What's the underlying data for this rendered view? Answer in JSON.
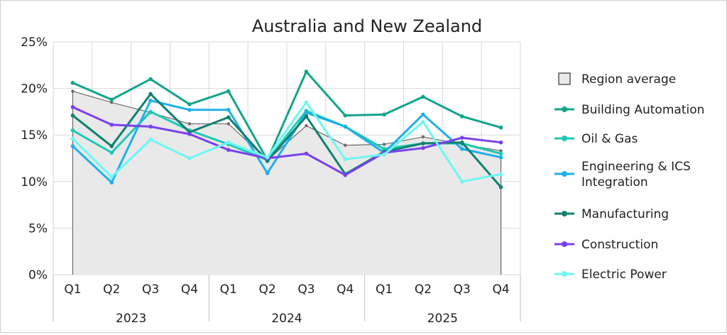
{
  "chart_data": {
    "type": "line",
    "title": "Australia and New Zealand",
    "xlabel": "",
    "ylabel": "",
    "ylim": [
      0,
      25
    ],
    "y_ticks": [
      "0%",
      "5%",
      "10%",
      "15%",
      "20%",
      "25%"
    ],
    "y_tick_values": [
      0,
      5,
      10,
      15,
      20,
      25
    ],
    "categories": [
      "Q1",
      "Q2",
      "Q3",
      "Q4",
      "Q1",
      "Q2",
      "Q3",
      "Q4",
      "Q1",
      "Q2",
      "Q3",
      "Q4"
    ],
    "groups": [
      {
        "label": "2023",
        "span": 4
      },
      {
        "label": "2024",
        "span": 4
      },
      {
        "label": "2025",
        "span": 4
      }
    ],
    "grid": true,
    "legend_position": "right",
    "series": [
      {
        "name": "Region average",
        "kind": "area",
        "color": "#6b6b6b",
        "fill": "#e9e9ea",
        "values": [
          19.7,
          18.5,
          17.4,
          16.2,
          16.2,
          12.3,
          16.0,
          13.9,
          14.0,
          14.8,
          14.0,
          13.3
        ]
      },
      {
        "name": "Building Automation",
        "color": "#13a58a",
        "values": [
          20.6,
          18.8,
          21.0,
          18.3,
          19.7,
          12.3,
          21.8,
          17.1,
          17.2,
          19.1,
          17.0,
          15.8
        ]
      },
      {
        "name": "Oil & Gas",
        "color": "#1ec9b3",
        "values": [
          15.5,
          13.1,
          17.5,
          15.5,
          14.0,
          12.3,
          17.6,
          15.9,
          13.5,
          14.1,
          14.1,
          13.0
        ]
      },
      {
        "name": "Engineering & ICS Integration",
        "color": "#1fb0ea",
        "values": [
          13.8,
          9.9,
          18.7,
          17.7,
          17.7,
          10.9,
          17.4,
          15.9,
          13.1,
          17.2,
          13.5,
          12.6
        ]
      },
      {
        "name": "Manufacturing",
        "color": "#0f8170",
        "values": [
          17.1,
          13.8,
          19.4,
          15.3,
          16.9,
          12.2,
          17.0,
          10.8,
          13.2,
          14.1,
          14.2,
          9.4
        ]
      },
      {
        "name": "Construction",
        "color": "#7a40ee",
        "values": [
          18.0,
          16.1,
          15.9,
          15.1,
          13.4,
          12.5,
          13.0,
          10.7,
          13.1,
          13.6,
          14.7,
          14.2
        ]
      },
      {
        "name": "Electric Power",
        "color": "#6ef7f2",
        "values": [
          14.6,
          10.5,
          14.5,
          12.5,
          14.2,
          12.6,
          18.5,
          12.4,
          12.9,
          16.4,
          10.0,
          10.8
        ]
      }
    ],
    "legend": [
      {
        "name": "Region average",
        "lines": [
          "Region average"
        ],
        "marker": "square"
      },
      {
        "name": "Building Automation",
        "lines": [
          "Building Automation"
        ],
        "marker": "line"
      },
      {
        "name": "Oil & Gas",
        "lines": [
          "Oil & Gas"
        ],
        "marker": "line"
      },
      {
        "name": "Engineering & ICS Integration",
        "lines": [
          "Engineering & ICS",
          "Integration"
        ],
        "marker": "line"
      },
      {
        "name": "Manufacturing",
        "lines": [
          "Manufacturing"
        ],
        "marker": "line"
      },
      {
        "name": "Construction",
        "lines": [
          "Construction"
        ],
        "marker": "line"
      },
      {
        "name": "Electric Power",
        "lines": [
          "Electric Power"
        ],
        "marker": "line"
      }
    ]
  }
}
